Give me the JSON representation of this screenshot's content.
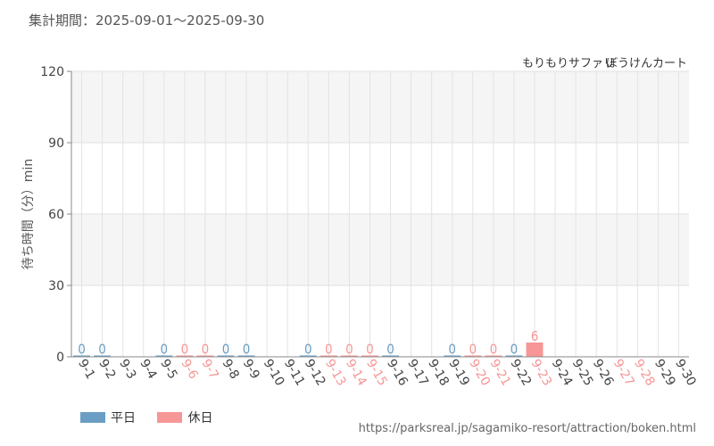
{
  "header": {
    "period_label": "集計期間：2025-09-01〜2025-09-30"
  },
  "chart_data": {
    "type": "bar",
    "subtitle_park": "もりもりサファリ",
    "subtitle_attraction": "ぼうけんカート",
    "ylabel": "待ち時間（分）min",
    "ylim": [
      0,
      120
    ],
    "yticks": [
      0,
      30,
      60,
      90,
      120
    ],
    "grid": true,
    "categories": [
      "9-1",
      "9-2",
      "9-3",
      "9-4",
      "9-5",
      "9-6",
      "9-7",
      "9-8",
      "9-9",
      "9-10",
      "9-11",
      "9-12",
      "9-13",
      "9-14",
      "9-15",
      "9-16",
      "9-17",
      "9-18",
      "9-19",
      "9-20",
      "9-21",
      "9-22",
      "9-23",
      "9-24",
      "9-25",
      "9-26",
      "9-27",
      "9-28",
      "9-29",
      "9-30"
    ],
    "values": [
      0,
      0,
      null,
      null,
      0,
      0,
      0,
      0,
      0,
      null,
      null,
      0,
      0,
      0,
      0,
      0,
      null,
      null,
      0,
      0,
      0,
      0,
      6,
      null,
      null,
      null,
      null,
      null,
      null,
      null
    ],
    "day_type": [
      "weekday",
      "weekday",
      "weekday",
      "weekday",
      "weekday",
      "holiday",
      "holiday",
      "weekday",
      "weekday",
      "weekday",
      "weekday",
      "weekday",
      "holiday",
      "holiday",
      "holiday",
      "weekday",
      "weekday",
      "weekday",
      "weekday",
      "holiday",
      "holiday",
      "weekday",
      "holiday",
      "weekday",
      "weekday",
      "weekday",
      "holiday",
      "holiday",
      "weekday",
      "weekday"
    ],
    "series": [
      {
        "name": "平日",
        "color": "#6a9ec5"
      },
      {
        "name": "休日",
        "color": "#f79696"
      }
    ]
  },
  "footer": {
    "source_url": "https://parksreal.jp/sagamiko-resort/attraction/boken.html"
  }
}
